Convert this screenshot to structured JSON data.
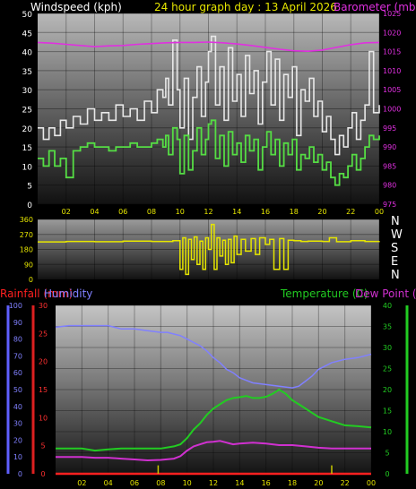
{
  "header": {
    "windspeed_label": "Windspeed (kph)",
    "graph_title": "24 hour graph day : 13 April 2026",
    "barometer_label": "Barometer (mb)"
  },
  "direction_labels": [
    "N",
    "W",
    "S",
    "E",
    "N"
  ],
  "bottom_header": {
    "rainfall_label": "Rainfall (mm)",
    "humidity_label": "Humidity",
    "temperature_label": "Temperature (C)",
    "dewpoint_label": "Dew Point (C)"
  },
  "colors": {
    "wind_gust": "#e8e8e8",
    "wind_avg": "#55dd44",
    "barometer": "#e030e0",
    "direction": "#e6e600",
    "rainfall": "#ff2020",
    "humidity": "#8080ff",
    "temperature": "#22cc22",
    "dewpoint": "#d030d0",
    "rain_bar": "#c8c800"
  },
  "chart_data": [
    {
      "type": "line",
      "name": "wind-barometer",
      "x_ticks": [
        "02",
        "04",
        "06",
        "08",
        "10",
        "12",
        "14",
        "16",
        "18",
        "20",
        "22",
        "00"
      ],
      "left_axis": {
        "label": "Windspeed (kph)",
        "ylim": [
          0,
          50
        ],
        "ticks": [
          0,
          5,
          10,
          15,
          20,
          25,
          30,
          35,
          40,
          45,
          50
        ]
      },
      "right_axis": {
        "label": "Barometer (mb)",
        "ylim": [
          975,
          1025
        ],
        "ticks": [
          975,
          980,
          985,
          990,
          995,
          1000,
          1005,
          1010,
          1015,
          1020,
          1025
        ]
      },
      "x_range": [
        0,
        24
      ],
      "grid": true,
      "series": [
        {
          "key": "gust",
          "axis": "left",
          "x": [
            0,
            0.4,
            0.8,
            1.2,
            1.6,
            2.0,
            2.5,
            3.0,
            3.5,
            4.0,
            4.5,
            5.0,
            5.5,
            6.0,
            6.5,
            7.0,
            7.5,
            8.0,
            8.4,
            8.8,
            9.0,
            9.2,
            9.5,
            9.8,
            10.0,
            10.3,
            10.6,
            10.9,
            11.2,
            11.5,
            11.8,
            12.0,
            12.2,
            12.5,
            12.8,
            13.1,
            13.4,
            13.7,
            14.0,
            14.3,
            14.6,
            14.9,
            15.2,
            15.5,
            15.8,
            16.1,
            16.4,
            16.7,
            17.0,
            17.3,
            17.6,
            17.9,
            18.2,
            18.5,
            18.8,
            19.1,
            19.4,
            19.7,
            20.0,
            20.3,
            20.6,
            20.9,
            21.2,
            21.5,
            21.8,
            22.1,
            22.4,
            22.7,
            23.0,
            23.3,
            23.6,
            24.0
          ],
          "y": [
            20,
            17,
            20,
            18,
            22,
            20,
            23,
            21,
            25,
            22,
            24,
            22,
            26,
            23,
            25,
            22,
            27,
            24,
            30,
            28,
            33,
            26,
            43,
            30,
            20,
            33,
            17,
            28,
            36,
            23,
            32,
            40,
            44,
            26,
            36,
            22,
            41,
            27,
            34,
            23,
            39,
            29,
            35,
            21,
            32,
            40,
            26,
            38,
            22,
            34,
            28,
            36,
            18,
            30,
            27,
            33,
            23,
            27,
            19,
            23,
            17,
            13,
            18,
            15,
            20,
            24,
            17,
            22,
            26,
            40,
            24,
            26
          ]
        },
        {
          "key": "avg",
          "axis": "left",
          "x": [
            0,
            0.4,
            0.8,
            1.2,
            1.6,
            2.0,
            2.5,
            3.0,
            3.5,
            4.0,
            4.5,
            5.0,
            5.5,
            6.0,
            6.5,
            7.0,
            7.5,
            8.0,
            8.4,
            8.8,
            9.0,
            9.2,
            9.5,
            9.8,
            10.0,
            10.3,
            10.6,
            10.9,
            11.2,
            11.5,
            11.8,
            12.0,
            12.2,
            12.5,
            12.8,
            13.1,
            13.4,
            13.7,
            14.0,
            14.3,
            14.6,
            14.9,
            15.2,
            15.5,
            15.8,
            16.1,
            16.4,
            16.7,
            17.0,
            17.3,
            17.6,
            17.9,
            18.2,
            18.5,
            18.8,
            19.1,
            19.4,
            19.7,
            20.0,
            20.3,
            20.6,
            20.9,
            21.2,
            21.5,
            21.8,
            22.1,
            22.4,
            22.7,
            23.0,
            23.3,
            23.6,
            24.0
          ],
          "y": [
            12,
            10,
            14,
            10,
            12,
            7,
            14,
            15,
            16,
            15,
            15,
            14,
            15,
            15,
            16,
            15,
            15,
            16,
            17,
            15,
            18,
            13,
            20,
            17,
            8,
            18,
            9,
            14,
            20,
            13,
            17,
            21,
            22,
            12,
            18,
            10,
            19,
            13,
            16,
            11,
            18,
            14,
            17,
            9,
            15,
            19,
            13,
            17,
            10,
            16,
            13,
            17,
            9,
            13,
            12,
            15,
            11,
            13,
            9,
            11,
            7,
            5,
            8,
            7,
            10,
            13,
            9,
            12,
            15,
            18,
            17,
            18
          ]
        },
        {
          "key": "barometer",
          "axis": "right",
          "x": [
            0,
            1,
            2,
            3,
            4,
            5,
            6,
            7,
            8,
            9,
            10,
            11,
            12,
            13,
            14,
            15,
            16,
            17,
            18,
            19,
            20,
            21,
            22,
            23,
            24
          ],
          "y": [
            1017.4,
            1017.2,
            1016.9,
            1016.6,
            1016.3,
            1016.5,
            1016.6,
            1016.9,
            1017.1,
            1017.3,
            1017.4,
            1017.4,
            1017.5,
            1017.3,
            1017.0,
            1016.6,
            1016.1,
            1015.6,
            1015.2,
            1015.1,
            1015.4,
            1016.1,
            1016.8,
            1017.3,
            1017.4
          ]
        }
      ]
    },
    {
      "type": "line",
      "name": "wind-direction",
      "left_axis": {
        "ylim": [
          0,
          360
        ],
        "ticks": [
          0,
          90,
          180,
          270,
          360
        ]
      },
      "x_range": [
        0,
        24
      ],
      "grid": true,
      "series": [
        {
          "key": "direction",
          "x": [
            0,
            2,
            4,
            6,
            8,
            9.5,
            10.0,
            10.2,
            10.4,
            10.6,
            10.8,
            11.0,
            11.2,
            11.4,
            11.6,
            11.8,
            12.0,
            12.2,
            12.4,
            12.6,
            12.8,
            13.0,
            13.2,
            13.4,
            13.6,
            13.8,
            14.0,
            14.3,
            14.6,
            15.0,
            15.3,
            15.6,
            16.0,
            16.3,
            16.6,
            17.0,
            17.3,
            17.6,
            18.0,
            18.5,
            19,
            20,
            20.5,
            21,
            22,
            23,
            24
          ],
          "y": [
            225,
            228,
            226,
            230,
            228,
            232,
            60,
            250,
            30,
            240,
            120,
            255,
            90,
            230,
            60,
            250,
            180,
            330,
            60,
            250,
            140,
            235,
            90,
            240,
            100,
            260,
            150,
            240,
            170,
            245,
            150,
            250,
            210,
            240,
            60,
            245,
            60,
            235,
            232,
            228,
            230,
            228,
            250,
            226,
            232,
            228,
            230
          ]
        }
      ]
    },
    {
      "type": "line",
      "name": "temperature-humidity",
      "x_ticks": [
        "02",
        "04",
        "06",
        "08",
        "10",
        "12",
        "14",
        "16",
        "18",
        "20",
        "22",
        "00"
      ],
      "rainfall_axis": {
        "label": "Rainfall (mm)",
        "ylim": [
          0,
          30
        ],
        "ticks": [
          0,
          5,
          10,
          15,
          20,
          25,
          30
        ]
      },
      "humidity_axis": {
        "label": "Humidity",
        "ylim": [
          0,
          100
        ],
        "ticks": [
          0,
          10,
          20,
          30,
          40,
          50,
          60,
          70,
          80,
          90,
          100
        ]
      },
      "temperature_axis": {
        "label": "Temperature (C)",
        "ylim": [
          0,
          40
        ],
        "ticks": [
          0,
          5,
          10,
          15,
          20,
          25,
          30,
          35,
          40
        ]
      },
      "x_range": [
        0,
        24
      ],
      "grid": true,
      "series": [
        {
          "key": "humidity",
          "axis": "humidity",
          "x": [
            0,
            1,
            2,
            3,
            4,
            5,
            6,
            7,
            8,
            8.5,
            9,
            9.5,
            10,
            10.5,
            11,
            11.5,
            12,
            12.5,
            13,
            13.5,
            14,
            15,
            16,
            17,
            18,
            18.5,
            19,
            19.5,
            20,
            21,
            22,
            23,
            24
          ],
          "y": [
            87,
            88,
            88,
            88,
            88,
            86,
            86,
            85,
            84,
            84,
            83,
            82,
            80,
            78,
            76,
            73,
            69,
            66,
            62,
            60,
            57,
            54,
            53,
            52,
            51,
            52,
            55,
            58,
            62,
            66,
            68,
            69,
            71
          ]
        },
        {
          "key": "temperature",
          "axis": "temperature",
          "x": [
            0,
            1,
            2,
            3,
            4,
            5,
            6,
            7,
            8,
            9,
            9.5,
            10,
            10.5,
            11,
            11.5,
            12,
            12.5,
            13,
            13.5,
            14,
            14.5,
            15,
            15.5,
            16,
            16.5,
            17,
            17.5,
            18,
            18.5,
            19,
            19.5,
            20,
            21,
            22,
            23,
            24
          ],
          "y": [
            6,
            6,
            6,
            5.5,
            5.8,
            6,
            6,
            6,
            6,
            6.5,
            7,
            8.5,
            10.5,
            12,
            14,
            15.5,
            16.5,
            17.5,
            18,
            18.2,
            18.5,
            18,
            18,
            18.3,
            19,
            20,
            19,
            17.5,
            16.5,
            15.5,
            14.5,
            13.5,
            12.5,
            11.5,
            11.3,
            11
          ]
        },
        {
          "key": "dewpoint",
          "axis": "temperature",
          "x": [
            0,
            1,
            2,
            3,
            4,
            5,
            6,
            7,
            8,
            9,
            9.5,
            10,
            10.5,
            11,
            11.5,
            12,
            12.5,
            13,
            13.5,
            14,
            15,
            16,
            17,
            18,
            19,
            20,
            21,
            22,
            23,
            24
          ],
          "y": [
            4,
            4,
            4,
            3.8,
            3.8,
            3.6,
            3.4,
            3.2,
            3.3,
            3.6,
            4.2,
            5.5,
            6.5,
            7,
            7.5,
            7.6,
            7.8,
            7.4,
            7,
            7.2,
            7.4,
            7.2,
            6.8,
            6.8,
            6.5,
            6.2,
            6,
            6,
            6,
            6
          ]
        },
        {
          "key": "rainfall",
          "axis": "rainfall",
          "x": [
            0,
            24
          ],
          "y": [
            0,
            0
          ]
        },
        {
          "key": "rain_bars",
          "axis": "rainfall",
          "x": [
            7.8,
            21.0
          ],
          "y": [
            1.5,
            1.5
          ]
        }
      ]
    }
  ]
}
